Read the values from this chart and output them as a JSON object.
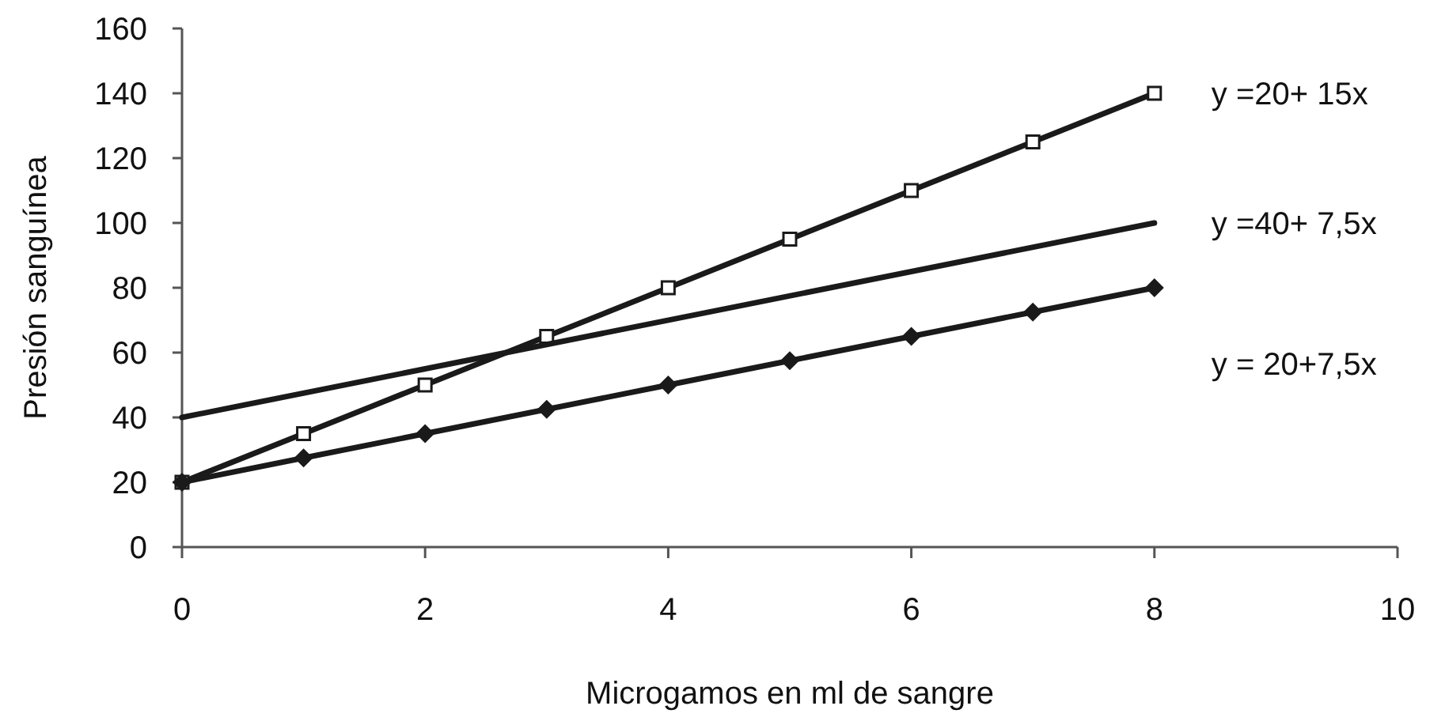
{
  "chart_data": {
    "type": "line",
    "xlabel": "Microgamos en ml de sangre",
    "ylabel": "Presión sanguínea",
    "xlim": [
      0,
      10
    ],
    "xticks": [
      0,
      2,
      4,
      6,
      8,
      10
    ],
    "ylim": [
      0,
      160
    ],
    "yticks": [
      0,
      20,
      40,
      60,
      80,
      100,
      120,
      140,
      160
    ],
    "grid": false,
    "series": [
      {
        "name": "y =20+ 15x",
        "color": "#1a1a1a",
        "marker": "square",
        "x": [
          0,
          1,
          2,
          3,
          4,
          5,
          6,
          7,
          8
        ],
        "values": [
          20,
          35,
          50,
          65,
          80,
          95,
          110,
          125,
          140
        ]
      },
      {
        "name": "y =40+ 7,5x",
        "color": "#1a1a1a",
        "marker": "none",
        "x": [
          0,
          8
        ],
        "values": [
          40,
          100
        ]
      },
      {
        "name": "y = 20+7,5x",
        "color": "#1a1a1a",
        "marker": "diamond",
        "x": [
          0,
          1,
          2,
          3,
          4,
          5,
          6,
          7,
          8
        ],
        "values": [
          20,
          27.5,
          35,
          42.5,
          50,
          57.5,
          65,
          72.5,
          80
        ]
      }
    ]
  }
}
